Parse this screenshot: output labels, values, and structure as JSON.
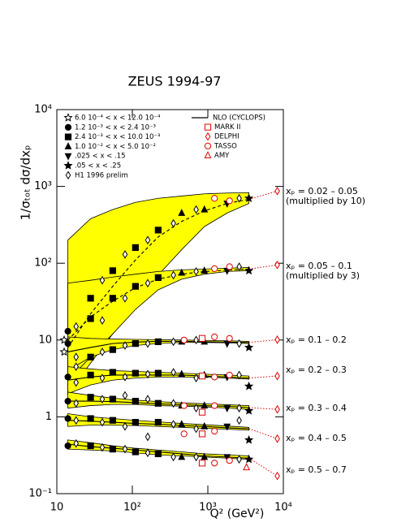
{
  "chart_data": {
    "type": "scatter",
    "title": "ZEUS 1994-97",
    "x_label": "Q² (GeV²)",
    "y_label": "1/σₜₒₜ dσ/dxₚ",
    "log_x": true,
    "log_y": true,
    "xlim": [
      10,
      10000
    ],
    "ylim": [
      0.1,
      10000
    ],
    "xticks": [
      10,
      {
        "value": 100,
        "label": "10²"
      },
      {
        "value": 1000,
        "label": "10³"
      },
      {
        "value": 10000,
        "label": "10⁴"
      }
    ],
    "yticks": [
      {
        "value": 0.1,
        "label": "10⁻¹"
      },
      1,
      10,
      {
        "value": 100,
        "label": "10²"
      },
      {
        "value": 1000,
        "label": "10³"
      },
      {
        "value": 10000,
        "label": "10⁴"
      }
    ],
    "series": [
      {
        "name": "6.0 10⁻⁴ < x < 12.0 10⁻⁴",
        "marker": "star-open",
        "color": "#000000",
        "x": [
          12.5,
          12.5
        ],
        "y": [
          10,
          7
        ]
      },
      {
        "name": "1.2 10⁻³ < x < 2.4 10⁻³",
        "marker": "circle",
        "color": "#000000",
        "x": [
          14,
          14,
          14,
          14,
          14,
          14
        ],
        "y": [
          13,
          9,
          3.3,
          1.6,
          0.95,
          0.42
        ]
      },
      {
        "name": "2.4 10⁻³ < x < 10.0 10⁻³",
        "marker": "square",
        "color": "#000000",
        "x": [
          28,
          55,
          110,
          220,
          28,
          55,
          110,
          220,
          28,
          55,
          110,
          220,
          28,
          55,
          110,
          220,
          28,
          55,
          110,
          220,
          28,
          55,
          110,
          220,
          28,
          55,
          110,
          220
        ],
        "y": [
          35,
          80,
          160,
          270,
          19,
          35,
          50,
          65,
          6,
          7.5,
          9,
          9.5,
          3.5,
          3.8,
          3.7,
          3.7,
          1.8,
          1.7,
          1.6,
          1.5,
          0.95,
          0.9,
          0.85,
          0.85,
          0.42,
          0.38,
          0.35,
          0.33
        ]
      },
      {
        "name": "1.0 10⁻² < x < 5.0 10⁻²",
        "marker": "triangle",
        "color": "#000000",
        "x": [
          450,
          900,
          450,
          900,
          450,
          900,
          450,
          900,
          450,
          900,
          450,
          900,
          450,
          900
        ],
        "y": [
          450,
          500,
          75,
          80,
          9.5,
          9.5,
          3.6,
          3.5,
          1.4,
          1.4,
          0.8,
          0.75,
          0.3,
          0.3
        ]
      },
      {
        "name": ".025 < x < .15",
        "marker": "triangle-down",
        "color": "#000000",
        "x": [
          1800,
          1800,
          1800,
          1800,
          1800,
          1800,
          1800
        ],
        "y": [
          600,
          80,
          9,
          3.3,
          1.3,
          0.75,
          0.3
        ]
      },
      {
        "name": ".05 < x < .25",
        "marker": "star",
        "color": "#000000",
        "x": [
          3500,
          3500,
          3500,
          3500,
          3500,
          3500,
          3500
        ],
        "y": [
          700,
          80,
          8,
          2.5,
          1.2,
          0.5,
          0.28
        ]
      },
      {
        "name": "H1 1996 prelim",
        "marker": "diamond-open",
        "color": "#000000",
        "x": [
          18,
          40,
          80,
          160,
          350,
          700,
          2600,
          18,
          40,
          80,
          160,
          350,
          700,
          2600,
          18,
          40,
          80,
          160,
          350,
          700,
          2600,
          18,
          40,
          80,
          160,
          350,
          700,
          2600,
          18,
          40,
          80,
          160,
          350,
          700,
          2600,
          18,
          40,
          80,
          160,
          350,
          700,
          2600,
          18,
          40,
          80,
          160,
          350,
          700,
          2600
        ],
        "y": [
          15,
          60,
          130,
          200,
          330,
          500,
          700,
          6,
          18,
          35,
          55,
          70,
          78,
          90,
          4.5,
          7,
          8.5,
          9,
          9.5,
          10,
          9,
          2.8,
          3.2,
          3.3,
          3.6,
          3.8,
          3.2,
          3.5,
          1.5,
          1.7,
          1.9,
          1.7,
          1.5,
          1.3,
          1.3,
          0.9,
          0.85,
          0.75,
          0.55,
          0.8,
          0.7,
          0.9,
          0.45,
          0.4,
          0.38,
          0.34,
          0.3,
          0.3,
          0.28
        ]
      },
      {
        "name": "MARK II",
        "marker": "square-open",
        "color": "#e00000",
        "x": [
          841,
          841,
          841,
          841,
          841
        ],
        "y": [
          10.5,
          3.4,
          1.15,
          0.6,
          0.25
        ]
      },
      {
        "name": "DELPHI",
        "marker": "diamond-open",
        "color": "#e00000",
        "x": [
          8317,
          8317,
          8317,
          8317,
          8317,
          8317,
          8317
        ],
        "y": [
          870,
          95,
          10.1,
          3.4,
          1.25,
          0.52,
          0.17
        ]
      },
      {
        "name": "TASSO",
        "marker": "circle-open",
        "color": "#e00000",
        "x": [
          1225,
          1936,
          1225,
          1936,
          484,
          1225,
          1936,
          1225,
          1936,
          484,
          1225,
          484,
          1225,
          1225,
          1936
        ],
        "y": [
          700,
          650,
          85,
          90,
          10,
          11,
          10.5,
          3.3,
          3.5,
          1.4,
          1.4,
          0.6,
          0.65,
          0.25,
          0.27
        ]
      },
      {
        "name": "AMY",
        "marker": "triangle-open",
        "color": "#e00000",
        "x": [
          3249
        ],
        "y": [
          0.22
        ]
      }
    ],
    "nlo": {
      "name": "NLO (CYCLOPS)",
      "color": "#000000",
      "band_color": "#ffff00",
      "x": [
        14,
        28,
        55,
        110,
        220,
        450,
        900,
        1800,
        3500
      ],
      "curves": [
        [
          8,
          22,
          50,
          110,
          220,
          350,
          480,
          600,
          680
        ],
        [
          10,
          20,
          32,
          48,
          62,
          72,
          78,
          81,
          84
        ],
        [
          7,
          8,
          9,
          9.4,
          9.6,
          9.6,
          9.5,
          9.4,
          9.3
        ],
        [
          3,
          3.3,
          3.5,
          3.5,
          3.5,
          3.5,
          3.4,
          3.3,
          3.2
        ],
        [
          1.6,
          1.6,
          1.58,
          1.53,
          1.48,
          1.44,
          1.4,
          1.37,
          1.32
        ],
        [
          0.9,
          0.88,
          0.85,
          0.82,
          0.8,
          0.77,
          0.75,
          0.72,
          0.7
        ],
        [
          0.44,
          0.41,
          0.39,
          0.37,
          0.35,
          0.33,
          0.31,
          0.3,
          0.29
        ]
      ],
      "band_low": [
        [
          2,
          5,
          12,
          30,
          70,
          150,
          300,
          450,
          600
        ],
        [
          3,
          6,
          12,
          25,
          45,
          62,
          72,
          78,
          80
        ],
        [
          4,
          6,
          7.5,
          8.5,
          9,
          9.3,
          9.3,
          9.2,
          9
        ],
        [
          2,
          2.6,
          3,
          3.2,
          3.3,
          3.3,
          3.3,
          3.2,
          3.1
        ],
        [
          1.3,
          1.4,
          1.45,
          1.45,
          1.4,
          1.38,
          1.35,
          1.3,
          1.25
        ],
        [
          0.75,
          0.78,
          0.78,
          0.77,
          0.75,
          0.73,
          0.71,
          0.69,
          0.67
        ],
        [
          0.38,
          0.37,
          0.36,
          0.34,
          0.32,
          0.31,
          0.3,
          0.29,
          0.28
        ]
      ],
      "band_high": [
        [
          200,
          380,
          500,
          620,
          700,
          750,
          800,
          820,
          830
        ],
        [
          55,
          60,
          66,
          72,
          78,
          82,
          84,
          86,
          88
        ],
        [
          11,
          10.5,
          10.3,
          10.2,
          10.1,
          10,
          9.9,
          9.8,
          9.6
        ],
        [
          4.5,
          4.2,
          4,
          3.9,
          3.8,
          3.7,
          3.6,
          3.5,
          3.4
        ],
        [
          2.1,
          1.9,
          1.75,
          1.65,
          1.58,
          1.52,
          1.48,
          1.44,
          1.4
        ],
        [
          1.1,
          1,
          0.95,
          0.9,
          0.86,
          0.82,
          0.79,
          0.76,
          0.73
        ],
        [
          0.5,
          0.46,
          0.42,
          0.39,
          0.37,
          0.35,
          0.33,
          0.32,
          0.31
        ]
      ]
    },
    "bin_labels": [
      {
        "label": "xₚ = 0.02 – 0.05",
        "note": "(multiplied by 10)"
      },
      {
        "label": "xₚ = 0.05 – 0.1",
        "note": "(multiplied by 3)"
      },
      {
        "label": "xₚ = 0.1 – 0.2"
      },
      {
        "label": "xₚ = 0.2 – 0.3"
      },
      {
        "label": "xₚ = 0.3 – 0.4"
      },
      {
        "label": "xₚ = 0.4 – 0.5"
      },
      {
        "label": "xₚ = 0.5 – 0.7"
      }
    ]
  }
}
